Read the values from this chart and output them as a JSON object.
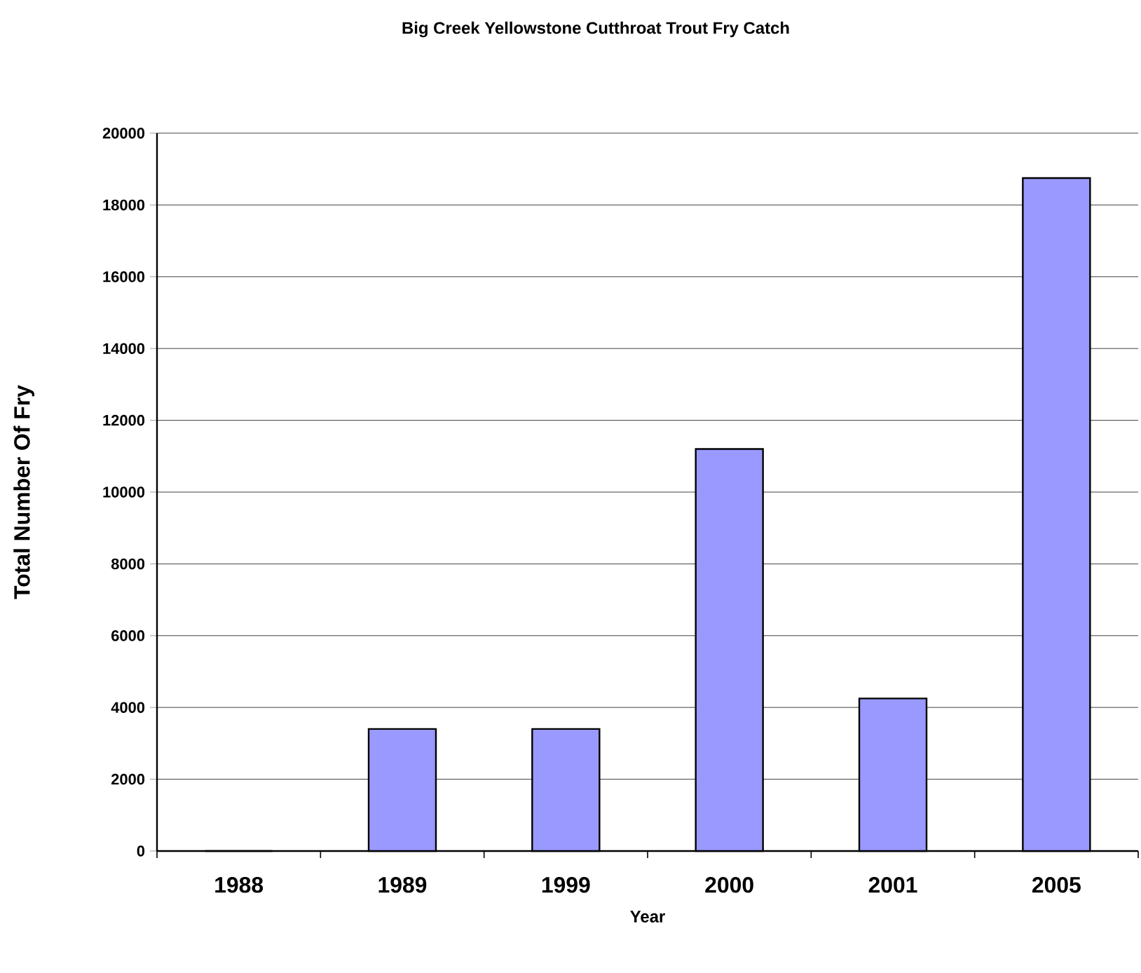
{
  "chart_data": {
    "type": "bar",
    "title": "Big Creek  Yellowstone Cutthroat Trout Fry Catch",
    "xlabel": "Year",
    "ylabel": "Total Number Of Fry",
    "categories": [
      "1988",
      "1989",
      "1999",
      "2000",
      "2001",
      "2005"
    ],
    "values": [
      0,
      3400,
      3400,
      11200,
      4250,
      18750
    ],
    "color": "#9999ff",
    "ylim": [
      0,
      20000
    ],
    "yticks": [
      0,
      2000,
      4000,
      6000,
      8000,
      10000,
      12000,
      14000,
      16000,
      18000,
      20000
    ],
    "grid": "y"
  }
}
